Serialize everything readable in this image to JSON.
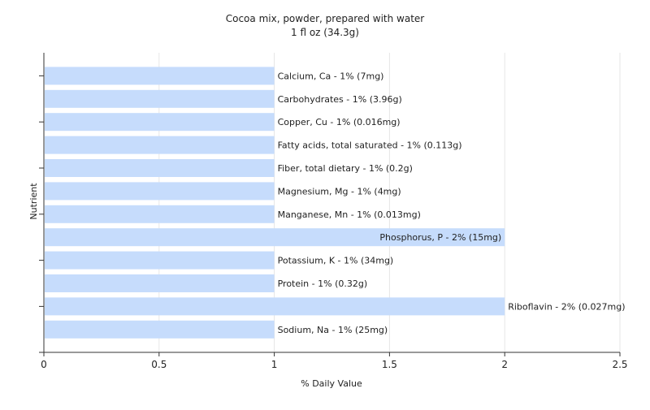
{
  "chart_data": {
    "type": "bar",
    "orientation": "horizontal",
    "title": "Cocoa mix, powder, prepared with water",
    "subtitle": "1 fl oz (34.3g)",
    "xlabel": "% Daily Value",
    "ylabel": "Nutrient",
    "xlim": [
      0,
      2.5
    ],
    "xticks": [
      "0",
      "0.5",
      "1",
      "1.5",
      "2",
      "2.5"
    ],
    "grid": true,
    "bar_color": "#c6dcfc",
    "categories": [
      "Calcium, Ca",
      "Carbohydrates",
      "Copper, Cu",
      "Fatty acids, total saturated",
      "Fiber, total dietary",
      "Magnesium, Mg",
      "Manganese, Mn",
      "Phosphorus, P",
      "Potassium, K",
      "Protein",
      "Riboflavin",
      "Sodium, Na"
    ],
    "values": [
      1,
      1,
      1,
      1,
      1,
      1,
      1,
      2,
      1,
      1,
      2,
      1
    ],
    "labels": [
      "Calcium, Ca - 1% (7mg)",
      "Carbohydrates - 1% (3.96g)",
      "Copper, Cu - 1% (0.016mg)",
      "Fatty acids, total saturated - 1% (0.113g)",
      "Fiber, total dietary - 1% (0.2g)",
      "Magnesium, Mg - 1% (4mg)",
      "Manganese, Mn - 1% (0.013mg)",
      "Phosphorus, P - 2% (15mg)",
      "Potassium, K - 1% (34mg)",
      "Protein - 1% (0.32g)",
      "Riboflavin - 2% (0.027mg)",
      "Sodium, Na - 1% (25mg)"
    ],
    "label_inside": [
      false,
      false,
      false,
      false,
      false,
      false,
      false,
      true,
      false,
      false,
      false,
      false
    ]
  }
}
